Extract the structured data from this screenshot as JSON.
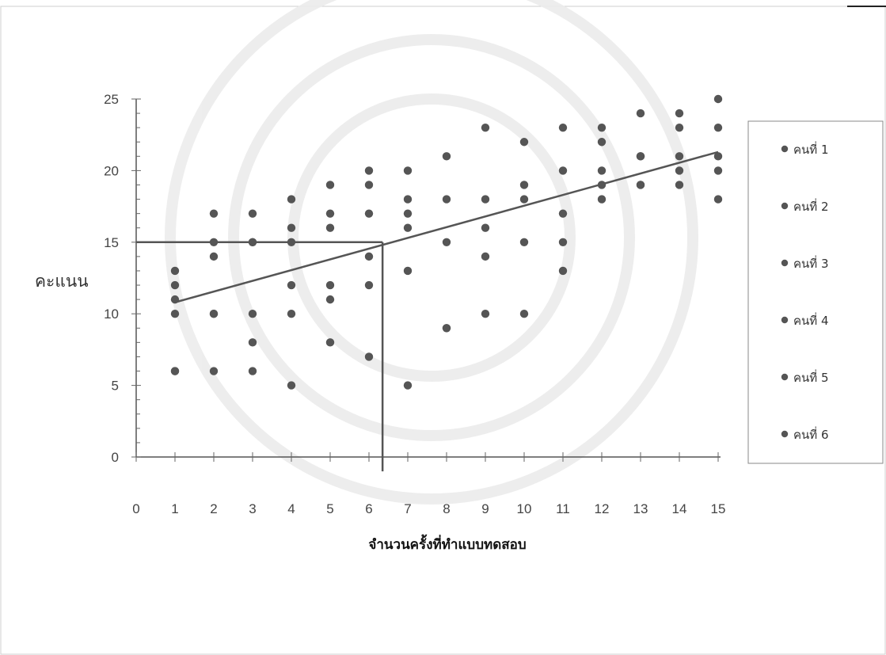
{
  "chart_data": {
    "type": "scatter",
    "title": "",
    "xlabel": "จำนวนครั้งที่ทำแบบทดสอบ",
    "ylabel": "คะแนน",
    "xlim": [
      0,
      15
    ],
    "ylim": [
      0,
      25
    ],
    "x_ticks": [
      "0",
      "1",
      "2",
      "3",
      "4",
      "5",
      "6",
      "7",
      "8",
      "9",
      "10",
      "11",
      "12",
      "13",
      "14",
      "15"
    ],
    "y_ticks": [
      "0",
      "5",
      "10",
      "15",
      "20",
      "25"
    ],
    "grid": false,
    "legend_position": "right",
    "marker_color": "#555555",
    "series": [
      {
        "name": "คนที่ 1",
        "x": [
          1,
          2,
          3,
          4,
          5,
          6,
          7,
          8,
          9,
          10,
          11,
          12,
          13,
          14,
          15
        ],
        "y": [
          13,
          17,
          17,
          18,
          19,
          20,
          20,
          21,
          23,
          22,
          23,
          23,
          24,
          24,
          25
        ]
      },
      {
        "name": "คนที่ 2",
        "x": [
          1,
          2,
          3,
          4,
          5,
          6,
          7,
          8,
          9,
          10,
          11,
          12,
          13,
          14,
          15
        ],
        "y": [
          12,
          15,
          15,
          16,
          17,
          19,
          18,
          18,
          18,
          19,
          20,
          22,
          21,
          23,
          23
        ]
      },
      {
        "name": "คนที่ 3",
        "x": [
          1,
          2,
          3,
          4,
          5,
          6,
          7,
          8,
          9,
          10,
          11,
          12,
          13,
          14,
          15
        ],
        "y": [
          11,
          14,
          15,
          15,
          16,
          17,
          17,
          15,
          16,
          18,
          17,
          20,
          21,
          21,
          21
        ]
      },
      {
        "name": "คนที่ 4",
        "x": [
          1,
          2,
          3,
          4,
          5,
          6,
          7,
          8,
          9,
          10,
          11,
          12,
          13,
          14,
          15
        ],
        "y": [
          10,
          10,
          10,
          12,
          12,
          14,
          16,
          9,
          14,
          15,
          15,
          19,
          19,
          20,
          20
        ]
      },
      {
        "name": "คนที่ 5",
        "x": [
          1,
          2,
          3,
          4,
          5,
          6,
          7,
          8,
          9,
          10,
          11,
          12,
          13,
          14,
          15
        ],
        "y": [
          6,
          10,
          8,
          10,
          11,
          12,
          13,
          9,
          10,
          10,
          13,
          18,
          19,
          19,
          18
        ]
      },
      {
        "name": "คนที่ 6",
        "x": [
          1,
          2,
          3,
          4,
          5,
          6,
          7
        ],
        "y": [
          6,
          6,
          6,
          5,
          8,
          7,
          5
        ]
      }
    ],
    "trendline": {
      "x": [
        1,
        15
      ],
      "y": [
        10.8,
        21.3
      ]
    },
    "reference_lines": [
      {
        "orientation": "horizontal",
        "y": 15,
        "x_from": 0,
        "x_to": 6.35
      },
      {
        "orientation": "vertical",
        "x": 6.35,
        "y_from": 15,
        "y_to": -1
      }
    ]
  }
}
